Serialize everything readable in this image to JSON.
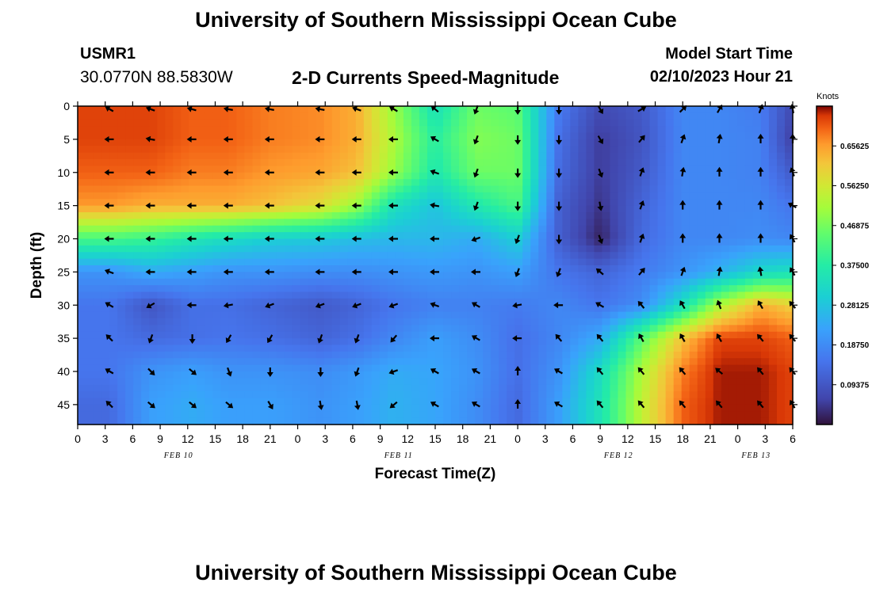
{
  "header": {
    "title": "University of Southern Mississippi Ocean Cube",
    "station_id": "USMR1",
    "coordinates": "30.0770N  88.5830W",
    "plot_title": "2-D Currents Speed-Magnitude",
    "model_start_label": "Model Start Time",
    "model_start_value": "02/10/2023 Hour 21"
  },
  "footer": {
    "title": "University of Southern Mississippi Ocean Cube"
  },
  "chart_data": {
    "type": "heatmap",
    "title": "2-D Currents Speed-Magnitude",
    "xlabel": "Forecast Time(Z)",
    "ylabel": "Depth (ft)",
    "x_tick_labels": [
      "0",
      "3",
      "6",
      "9",
      "12",
      "15",
      "18",
      "21",
      "0",
      "3",
      "6",
      "9",
      "12",
      "15",
      "18",
      "21",
      "0",
      "3",
      "6",
      "9",
      "12",
      "15",
      "18",
      "21",
      "0",
      "3",
      "6"
    ],
    "x_tick_hours": [
      0,
      3,
      6,
      9,
      12,
      15,
      18,
      21,
      24,
      27,
      30,
      33,
      36,
      39,
      42,
      45,
      48,
      51,
      54,
      57,
      60,
      63,
      66,
      69,
      72,
      75,
      78
    ],
    "xlim": [
      0,
      78
    ],
    "date_labels": [
      {
        "label": "FEB 10",
        "hour": 11
      },
      {
        "label": "FEB 11",
        "hour": 35
      },
      {
        "label": "FEB 12",
        "hour": 59
      },
      {
        "label": "FEB 13",
        "hour": 74
      }
    ],
    "y_ticks": [
      0,
      5,
      10,
      15,
      20,
      25,
      30,
      35,
      40,
      45
    ],
    "ylim": [
      0,
      48
    ],
    "y_inverted": true,
    "colorbar": {
      "label": "Knots",
      "min": 0,
      "max": 0.75,
      "ticks": [
        "0.65625",
        "0.56250",
        "0.46875",
        "0.37500",
        "0.28125",
        "0.18750",
        "0.09375"
      ],
      "tick_values": [
        0.65625,
        0.5625,
        0.46875,
        0.375,
        0.28125,
        0.1875,
        0.09375
      ]
    },
    "grid_hours": [
      3.5,
      8,
      12.5,
      16.5,
      21,
      26.5,
      30.5,
      34.5,
      39,
      43.5,
      48,
      52.5,
      57,
      61.5,
      66,
      70,
      74.5,
      78
    ],
    "grid_depths": [
      0,
      5,
      10,
      15,
      20,
      25,
      30,
      35,
      40,
      45
    ],
    "speed_knots": [
      [
        0.72,
        0.72,
        0.7,
        0.7,
        0.68,
        0.67,
        0.64,
        0.5,
        0.34,
        0.46,
        0.44,
        0.16,
        0.07,
        0.1,
        0.18,
        0.18,
        0.16,
        0.07
      ],
      [
        0.72,
        0.72,
        0.7,
        0.7,
        0.68,
        0.67,
        0.64,
        0.52,
        0.38,
        0.48,
        0.46,
        0.14,
        0.05,
        0.09,
        0.18,
        0.18,
        0.17,
        0.05
      ],
      [
        0.7,
        0.7,
        0.68,
        0.68,
        0.66,
        0.65,
        0.62,
        0.5,
        0.36,
        0.46,
        0.46,
        0.13,
        0.05,
        0.1,
        0.18,
        0.18,
        0.17,
        0.1
      ],
      [
        0.66,
        0.64,
        0.64,
        0.64,
        0.62,
        0.58,
        0.5,
        0.34,
        0.28,
        0.36,
        0.42,
        0.11,
        0.04,
        0.12,
        0.18,
        0.18,
        0.18,
        0.15
      ],
      [
        0.42,
        0.4,
        0.36,
        0.33,
        0.3,
        0.29,
        0.27,
        0.26,
        0.26,
        0.24,
        0.3,
        0.11,
        0.02,
        0.13,
        0.18,
        0.18,
        0.19,
        0.18
      ],
      [
        0.2,
        0.24,
        0.22,
        0.2,
        0.2,
        0.19,
        0.19,
        0.2,
        0.21,
        0.2,
        0.22,
        0.15,
        0.12,
        0.16,
        0.2,
        0.25,
        0.32,
        0.34
      ],
      [
        0.15,
        0.09,
        0.14,
        0.14,
        0.12,
        0.1,
        0.12,
        0.15,
        0.17,
        0.17,
        0.16,
        0.18,
        0.15,
        0.19,
        0.34,
        0.52,
        0.64,
        0.6
      ],
      [
        0.15,
        0.13,
        0.14,
        0.15,
        0.14,
        0.12,
        0.14,
        0.18,
        0.22,
        0.19,
        0.14,
        0.18,
        0.24,
        0.44,
        0.62,
        0.72,
        0.72,
        0.7
      ],
      [
        0.15,
        0.2,
        0.22,
        0.2,
        0.2,
        0.19,
        0.21,
        0.24,
        0.23,
        0.2,
        0.14,
        0.2,
        0.33,
        0.52,
        0.68,
        0.74,
        0.74,
        0.72
      ],
      [
        0.13,
        0.22,
        0.24,
        0.22,
        0.22,
        0.2,
        0.22,
        0.25,
        0.23,
        0.19,
        0.13,
        0.22,
        0.35,
        0.54,
        0.7,
        0.74,
        0.74,
        0.72
      ]
    ],
    "direction_deg": [
      [
        300,
        290,
        285,
        280,
        280,
        280,
        290,
        300,
        310,
        200,
        180,
        180,
        150,
        60,
        45,
        30,
        20,
        350
      ],
      [
        270,
        280,
        270,
        270,
        270,
        270,
        270,
        270,
        300,
        200,
        180,
        180,
        150,
        40,
        20,
        10,
        0,
        0
      ],
      [
        270,
        270,
        270,
        270,
        270,
        270,
        270,
        270,
        290,
        200,
        180,
        180,
        160,
        20,
        10,
        0,
        0,
        340
      ],
      [
        270,
        270,
        270,
        270,
        270,
        270,
        270,
        270,
        280,
        200,
        180,
        180,
        170,
        20,
        0,
        0,
        0,
        300
      ],
      [
        270,
        270,
        270,
        270,
        270,
        270,
        270,
        270,
        270,
        250,
        200,
        180,
        160,
        20,
        0,
        0,
        0,
        330
      ],
      [
        290,
        270,
        270,
        270,
        270,
        270,
        270,
        270,
        270,
        270,
        200,
        200,
        310,
        40,
        20,
        10,
        350,
        330
      ],
      [
        300,
        240,
        270,
        260,
        250,
        250,
        250,
        250,
        290,
        300,
        260,
        270,
        300,
        320,
        330,
        340,
        330,
        320
      ],
      [
        315,
        200,
        180,
        210,
        210,
        200,
        200,
        220,
        270,
        300,
        270,
        320,
        320,
        330,
        330,
        330,
        320,
        320
      ],
      [
        300,
        135,
        130,
        160,
        180,
        180,
        200,
        250,
        300,
        300,
        0,
        300,
        320,
        320,
        320,
        310,
        320,
        320
      ],
      [
        315,
        130,
        130,
        130,
        150,
        170,
        170,
        230,
        300,
        300,
        0,
        300,
        320,
        320,
        320,
        320,
        320,
        330
      ]
    ]
  }
}
